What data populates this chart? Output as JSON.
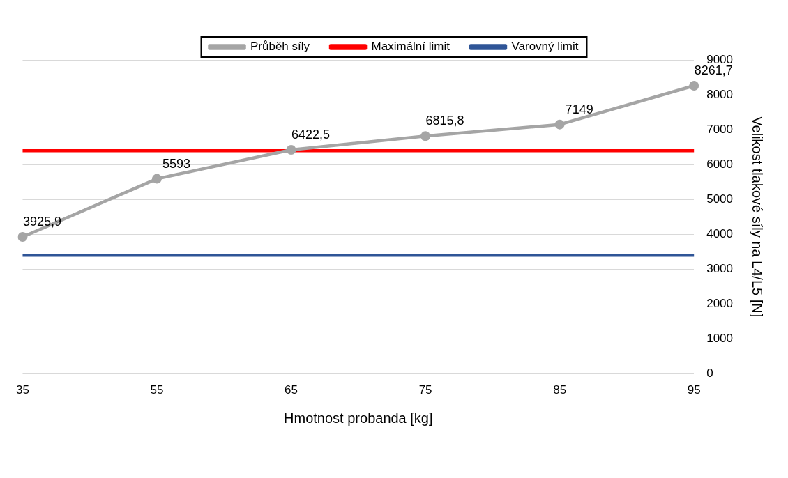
{
  "chart_data": {
    "type": "line",
    "xlabel": "Hmotnost probanda [kg]",
    "ylabel": "Velikost tlakové síly na L4/L5 [N]",
    "categories": [
      "35",
      "55",
      "65",
      "75",
      "85",
      "95"
    ],
    "series": [
      {
        "name": "Průběh síly",
        "color": "#a5a5a5",
        "marker": "circle",
        "values": [
          3925.9,
          5593,
          6422.5,
          6815.8,
          7149,
          8261.7
        ],
        "value_labels": [
          "3925,9",
          "5593",
          "6422,5",
          "6815,8",
          "7149",
          "8261,7"
        ]
      },
      {
        "name": "Maximální limit",
        "color": "#ff0000",
        "marker": "none",
        "values": [
          6400,
          6400,
          6400,
          6400,
          6400,
          6400
        ]
      },
      {
        "name": "Varovný limit",
        "color": "#2f5597",
        "marker": "none",
        "values": [
          3400,
          3400,
          3400,
          3400,
          3400,
          3400
        ]
      }
    ],
    "ylim": [
      0,
      9000
    ],
    "yticks": [
      0,
      1000,
      2000,
      3000,
      4000,
      5000,
      6000,
      7000,
      8000,
      9000
    ],
    "grid": "y",
    "legend": "top",
    "line_style": "solid"
  }
}
